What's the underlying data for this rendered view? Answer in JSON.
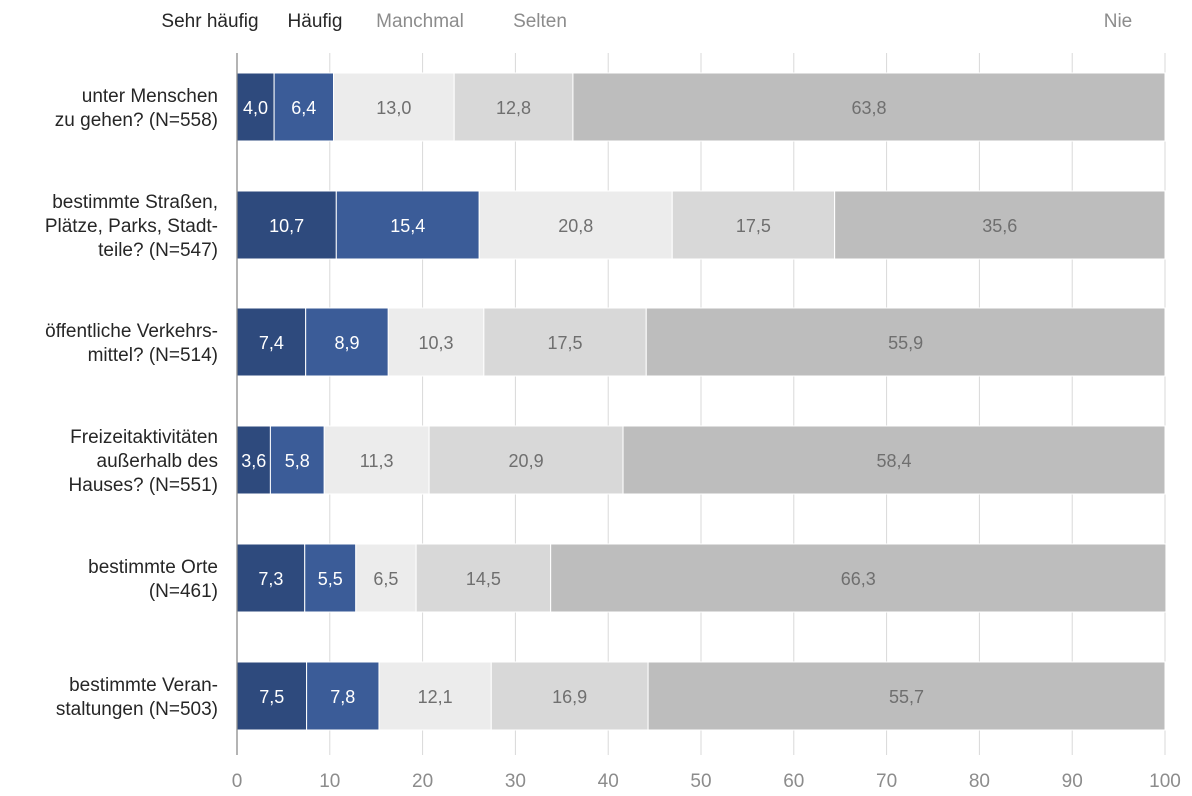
{
  "chart_data": {
    "type": "bar",
    "orientation": "horizontal",
    "stacked": true,
    "categories": [
      [
        "unter Menschen",
        "zu gehen? (N=558)"
      ],
      [
        "bestimmte Straßen,",
        "Plätze, Parks, Stadt-",
        "teile? (N=547)"
      ],
      [
        "öffentliche Verkehrs-",
        "mittel? (N=514)"
      ],
      [
        "Freizeitaktivitäten",
        "außerhalb des",
        "Hauses? (N=551)"
      ],
      [
        "bestimmte Orte",
        "(N=461)"
      ],
      [
        "bestimmte Veran-",
        "staltungen (N=503)"
      ]
    ],
    "series": [
      {
        "name": "Sehr häufig",
        "color": "#2e4a7d",
        "label_color": "#ffffff",
        "values": [
          4.0,
          10.7,
          7.4,
          3.6,
          7.3,
          7.5
        ],
        "labels": [
          "4,0",
          "10,7",
          "7,4",
          "3,6",
          "7,3",
          "7,5"
        ]
      },
      {
        "name": "Häufig",
        "color": "#3b5c98",
        "label_color": "#ffffff",
        "values": [
          6.4,
          15.4,
          8.9,
          5.8,
          5.5,
          7.8
        ],
        "labels": [
          "6,4",
          "15,4",
          "8,9",
          "5,8",
          "5,5",
          "7,8"
        ]
      },
      {
        "name": "Manchmal",
        "color": "#ececec",
        "label_color": "#6f6f6f",
        "values": [
          13.0,
          20.8,
          10.3,
          11.3,
          6.5,
          12.1
        ],
        "labels": [
          "13,0",
          "20,8",
          "10,3",
          "11,3",
          "6,5",
          "12,1"
        ]
      },
      {
        "name": "Selten",
        "color": "#d8d8d8",
        "label_color": "#6f6f6f",
        "values": [
          12.8,
          17.5,
          17.5,
          20.9,
          14.5,
          16.9
        ],
        "labels": [
          "12,8",
          "17,5",
          "17,5",
          "20,9",
          "14,5",
          "16,9"
        ]
      },
      {
        "name": "Nie",
        "color": "#bdbdbd",
        "label_color": "#6f6f6f",
        "values": [
          63.8,
          35.6,
          55.9,
          58.4,
          66.3,
          55.7
        ],
        "labels": [
          "63,8",
          "35,6",
          "55,9",
          "58,4",
          "66,3",
          "55,7"
        ]
      }
    ],
    "xticks": [
      "0",
      "10",
      "20",
      "30",
      "40",
      "50",
      "60",
      "70",
      "80",
      "90",
      "100"
    ],
    "xlim": [
      0,
      100
    ],
    "grid": true,
    "legend_position": "top",
    "legend_colors": [
      "#262626",
      "#262626",
      "#8c8c8c",
      "#8c8c8c",
      "#8c8c8c"
    ]
  }
}
